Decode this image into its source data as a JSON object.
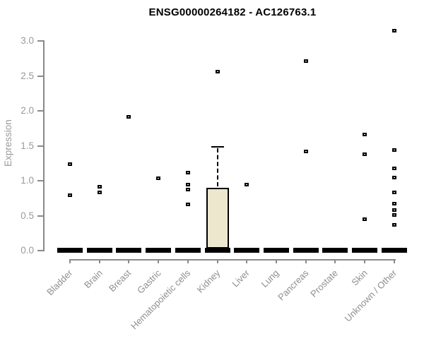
{
  "title": "ENSG00000264182 - AC126763.1",
  "chart_data": {
    "type": "boxplot",
    "title": "ENSG00000264182 - AC126763.1",
    "xlabel": "",
    "ylabel": "Expression",
    "ylim": [
      0.0,
      3.0
    ],
    "yticks": [
      "0.0",
      "0.5",
      "1.0",
      "1.5",
      "2.0",
      "2.5",
      "3.0"
    ],
    "grid": "off",
    "legend": "none",
    "categories": [
      "Bladder",
      "Brain",
      "Breast",
      "Gastric",
      "Hematopoietic cells",
      "Kidney",
      "Liver",
      "Lung",
      "Pancreas",
      "Prostate",
      "Skin",
      "Unknown / Other"
    ],
    "series": [
      {
        "name": "Bladder",
        "median": 0.0,
        "points": [
          1.22,
          0.78
        ]
      },
      {
        "name": "Brain",
        "median": 0.0,
        "points": [
          0.9,
          0.82
        ]
      },
      {
        "name": "Breast",
        "median": 0.0,
        "points": [
          1.9
        ]
      },
      {
        "name": "Gastric",
        "median": 0.0,
        "points": [
          1.02
        ]
      },
      {
        "name": "Hematopoietic cells",
        "median": 0.0,
        "points": [
          1.1,
          0.93,
          0.86,
          0.65
        ]
      },
      {
        "name": "Kidney",
        "median": 0.0,
        "box": {
          "q1": 0.0,
          "q3": 0.89,
          "whisker_high": 1.47
        },
        "points": [
          2.55
        ]
      },
      {
        "name": "Liver",
        "median": 0.0,
        "points": [
          0.93
        ]
      },
      {
        "name": "Lung",
        "median": 0.0,
        "points": []
      },
      {
        "name": "Pancreas",
        "median": 0.0,
        "points": [
          2.7,
          1.4
        ]
      },
      {
        "name": "Prostate",
        "median": 0.0,
        "points": []
      },
      {
        "name": "Skin",
        "median": 0.0,
        "points": [
          1.65,
          1.36,
          0.43
        ]
      },
      {
        "name": "Unknown / Other",
        "median": 0.0,
        "points": [
          3.13,
          1.42,
          1.16,
          1.03,
          0.82,
          0.66,
          0.57,
          0.49,
          0.35
        ]
      }
    ],
    "colors": {
      "axis": "#8a8a8a",
      "tick_label": "#9a9a9a",
      "point": "#000000",
      "median_bar": "#000000",
      "box_fill": "#ece7cd",
      "box_border": "#000000",
      "title": "#000000"
    }
  }
}
